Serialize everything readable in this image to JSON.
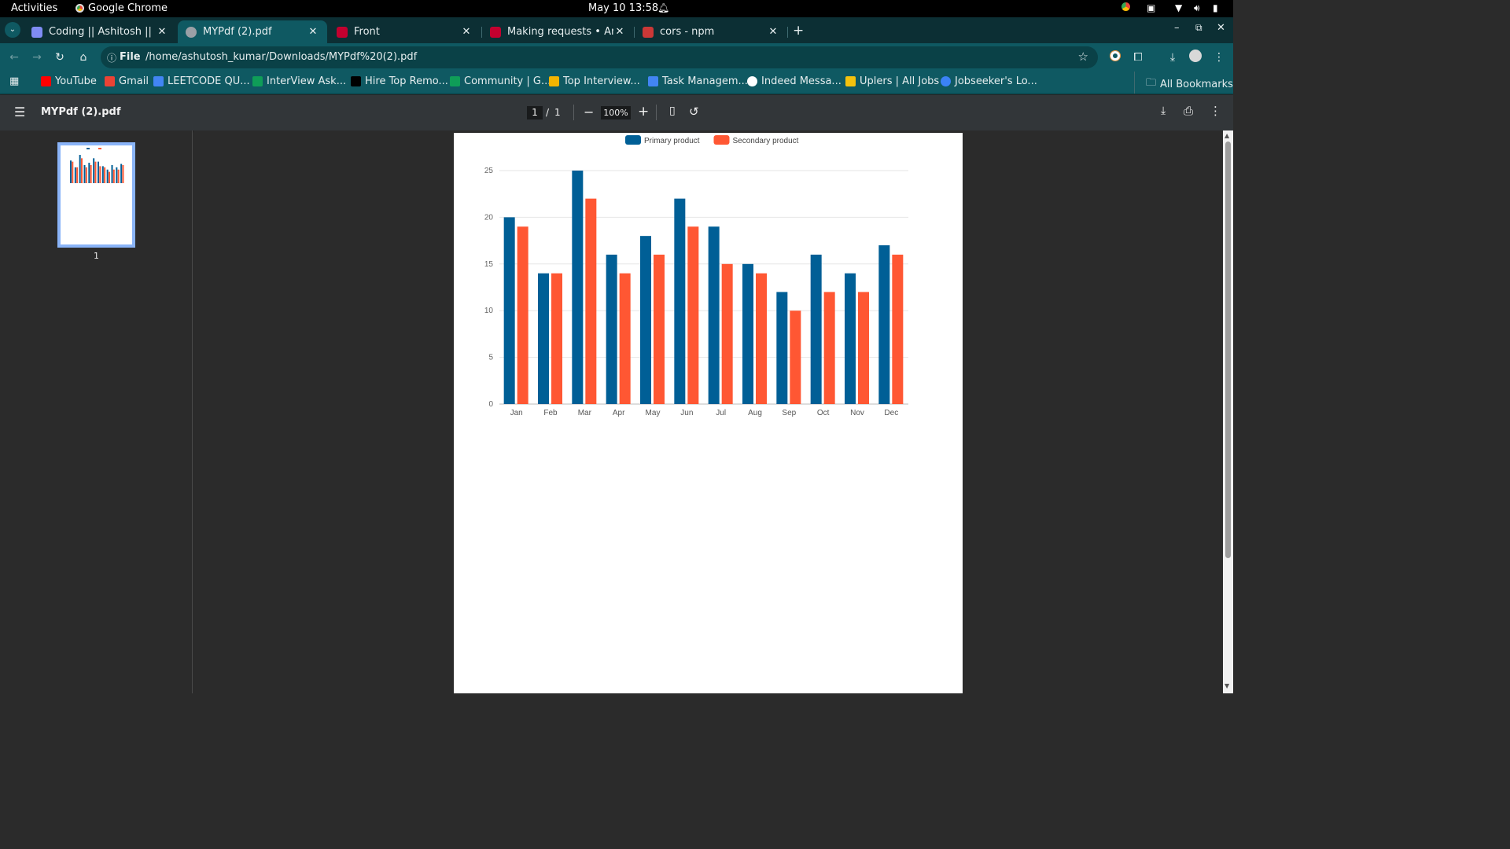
{
  "os": {
    "activities": "Activities",
    "app_name": "Google Chrome",
    "clock": "May 10  13:58"
  },
  "tabs": [
    {
      "title": "Coding || Ashitosh || MEA",
      "favicon_color": "#7f8cf4"
    },
    {
      "title": "MYPdf (2).pdf",
      "favicon_color": "#9aa0a6"
    },
    {
      "title": "Front",
      "favicon_color": "#c3002f"
    },
    {
      "title": "Making requests • Angul",
      "favicon_color": "#c3002f"
    },
    {
      "title": "cors - npm",
      "favicon_color": "#cb3837"
    }
  ],
  "omnibox": {
    "scheme_label": "File",
    "url": "/home/ashutosh_kumar/Downloads/MYPdf%20(2).pdf"
  },
  "bookmarks": [
    {
      "label": "YouTube",
      "color": "#ff0000"
    },
    {
      "label": "Gmail",
      "color": "#ea4335"
    },
    {
      "label": "LEETCODE QU...",
      "color": "#4285f4"
    },
    {
      "label": "InterView Ask...",
      "color": "#0f9d58"
    },
    {
      "label": "Hire Top Remo...",
      "color": "#000000"
    },
    {
      "label": "Community | G...",
      "color": "#0f9d58"
    },
    {
      "label": "Top Interview...",
      "color": "#f4b400"
    },
    {
      "label": "Task Managem...",
      "color": "#4285f4"
    },
    {
      "label": "Indeed Messa...",
      "color": "#ffffff"
    },
    {
      "label": "Uplers | All Jobs",
      "color": "#f4c20d"
    },
    {
      "label": "Jobseeker's Lo...",
      "color": "#3b82f6"
    }
  ],
  "all_bookmarks_label": "All Bookmarks",
  "pdf": {
    "title": "MYPdf (2).pdf",
    "page_current": "1",
    "page_sep": "/",
    "page_total": "1",
    "zoom": "100%",
    "thumb_label": "1"
  },
  "chart_data": {
    "type": "bar",
    "categories": [
      "Jan",
      "Feb",
      "Mar",
      "Apr",
      "May",
      "Jun",
      "Jul",
      "Aug",
      "Sep",
      "Oct",
      "Nov",
      "Dec"
    ],
    "series": [
      {
        "name": "Primary product",
        "color": "#005f96",
        "values": [
          20,
          14,
          25,
          16,
          18,
          22,
          19,
          15,
          12,
          16,
          14,
          17
        ]
      },
      {
        "name": "Secondary product",
        "color": "#ff5733",
        "values": [
          19,
          14,
          22,
          14,
          16,
          19,
          15,
          14,
          10,
          12,
          12,
          16
        ]
      }
    ],
    "yticks": [
      "0",
      "5",
      "10",
      "15",
      "20",
      "25"
    ],
    "ylim": [
      0,
      25
    ],
    "grid": true,
    "legend_position": "top"
  }
}
